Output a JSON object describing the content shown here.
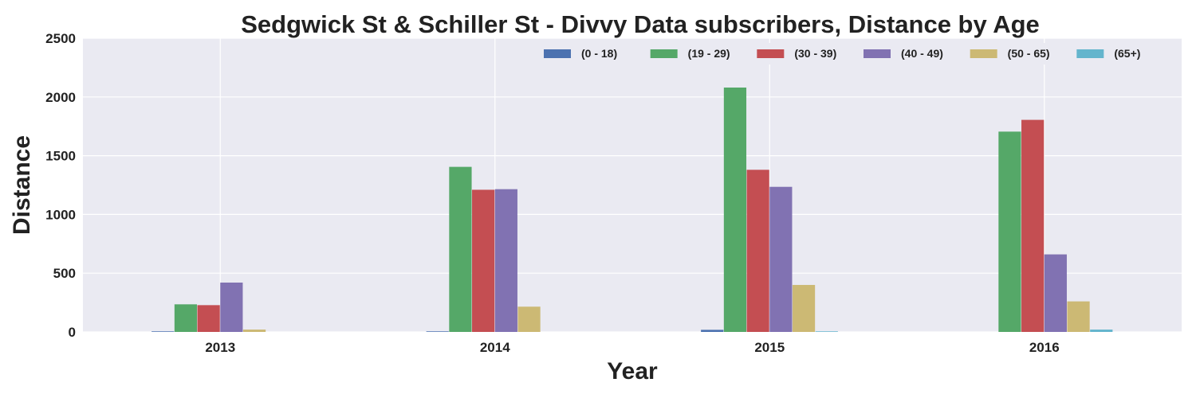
{
  "chart_data": {
    "type": "bar",
    "title": "Sedgwick St & Schiller St - Divvy Data subscribers, Distance by Age",
    "xlabel": "Year",
    "ylabel": "Distance",
    "categories": [
      "2013",
      "2014",
      "2015",
      "2016"
    ],
    "ylim": [
      0,
      2500
    ],
    "yticks": [
      0,
      500,
      1000,
      1500,
      2000,
      2500
    ],
    "grid": true,
    "legend_position": "top-right",
    "series": [
      {
        "name": "(0 - 18)",
        "color": "#4c72b0",
        "values": [
          5,
          5,
          18,
          0
        ]
      },
      {
        "name": "(19 - 29)",
        "color": "#55a868",
        "values": [
          235,
          1405,
          2080,
          1705
        ]
      },
      {
        "name": "(30 - 39)",
        "color": "#c44e52",
        "values": [
          228,
          1210,
          1380,
          1805
        ]
      },
      {
        "name": "(40 - 49)",
        "color": "#8172b2",
        "values": [
          420,
          1215,
          1235,
          660
        ]
      },
      {
        "name": "(50 - 65)",
        "color": "#ccb974",
        "values": [
          20,
          215,
          400,
          260
        ]
      },
      {
        "name": "(65+)",
        "color": "#64b5cd",
        "values": [
          0,
          0,
          5,
          20
        ]
      }
    ]
  }
}
